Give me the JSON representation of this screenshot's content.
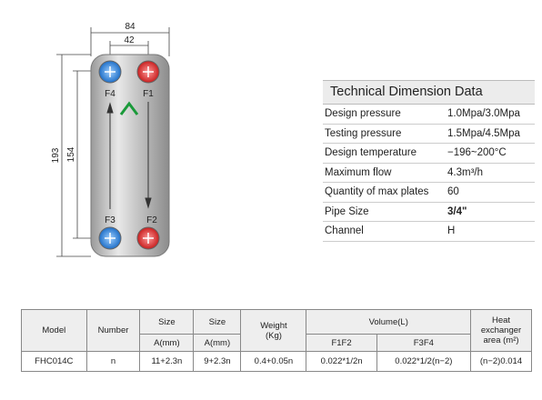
{
  "drawing": {
    "dimensions": {
      "width": "84",
      "port_spacing": "42",
      "height": "193",
      "port_height": "154"
    },
    "ports": {
      "top_left": "F4",
      "top_right": "F1",
      "bottom_left": "F3",
      "bottom_right": "F2"
    }
  },
  "specs": {
    "title": "Technical Dimension Data",
    "rows": [
      [
        "Design pressure",
        "1.0Mpa/3.0Mpa"
      ],
      [
        "Testing pressure",
        "1.5Mpa/4.5Mpa"
      ],
      [
        "Design temperature",
        "−196~200°C"
      ],
      [
        "Maximum flow",
        "4.3m³/h"
      ],
      [
        "Quantity of max plates",
        "60"
      ],
      [
        "Pipe Size",
        "3/4\""
      ],
      [
        "Channel",
        "H"
      ]
    ]
  },
  "table": {
    "headers": [
      "Model",
      "Number",
      "Size",
      "Size",
      "Weight\n(Kg)",
      "Volume(L)",
      "Heat exchanger area (m²)"
    ],
    "subheaders": [
      "A(mm)",
      "A(mm)",
      "F1F2",
      "F3F4"
    ],
    "rows": [
      [
        "FHC014C",
        "n",
        "11+2.3n",
        "9+2.3n",
        "0.4+0.05n",
        "0.022*1/2n",
        "0.022*1/2(n−2)",
        "(n−2)0.014"
      ]
    ]
  }
}
